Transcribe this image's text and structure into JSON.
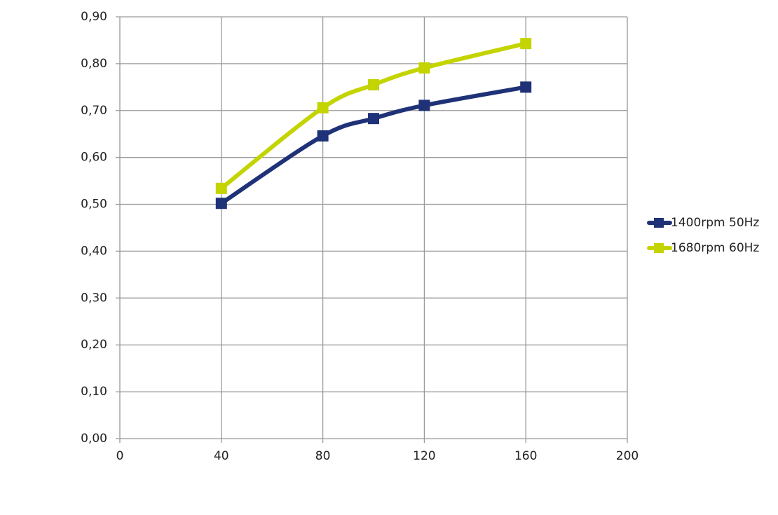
{
  "chart_data": {
    "type": "line",
    "x": [
      40,
      80,
      100,
      120,
      160
    ],
    "series": [
      {
        "name": "1400rpm 50Hz",
        "color": "#1f3277",
        "values": [
          0.502,
          0.646,
          0.683,
          0.711,
          0.75
        ]
      },
      {
        "name": "1680rpm 60Hz",
        "color": "#c4d400",
        "values": [
          0.534,
          0.706,
          0.755,
          0.791,
          0.843
        ]
      }
    ],
    "xlim": [
      0,
      200
    ],
    "xticks": [
      0,
      40,
      80,
      120,
      160,
      200
    ],
    "ylim": [
      0,
      0.9
    ],
    "yticks": [
      {
        "value": 0,
        "label": "0,00"
      },
      {
        "value": 0.1,
        "label": "0,10"
      },
      {
        "value": 0.2,
        "label": "0,20"
      },
      {
        "value": 0.3,
        "label": "0,30"
      },
      {
        "value": 0.4,
        "label": "0,40"
      },
      {
        "value": 0.5,
        "label": "0,50"
      },
      {
        "value": 0.6,
        "label": "0,60"
      },
      {
        "value": 0.7,
        "label": "0,70"
      },
      {
        "value": 0.8,
        "label": "0,80"
      },
      {
        "value": 0.9,
        "label": "0,90"
      }
    ],
    "grid": true,
    "legend": "right",
    "smooth": true
  }
}
